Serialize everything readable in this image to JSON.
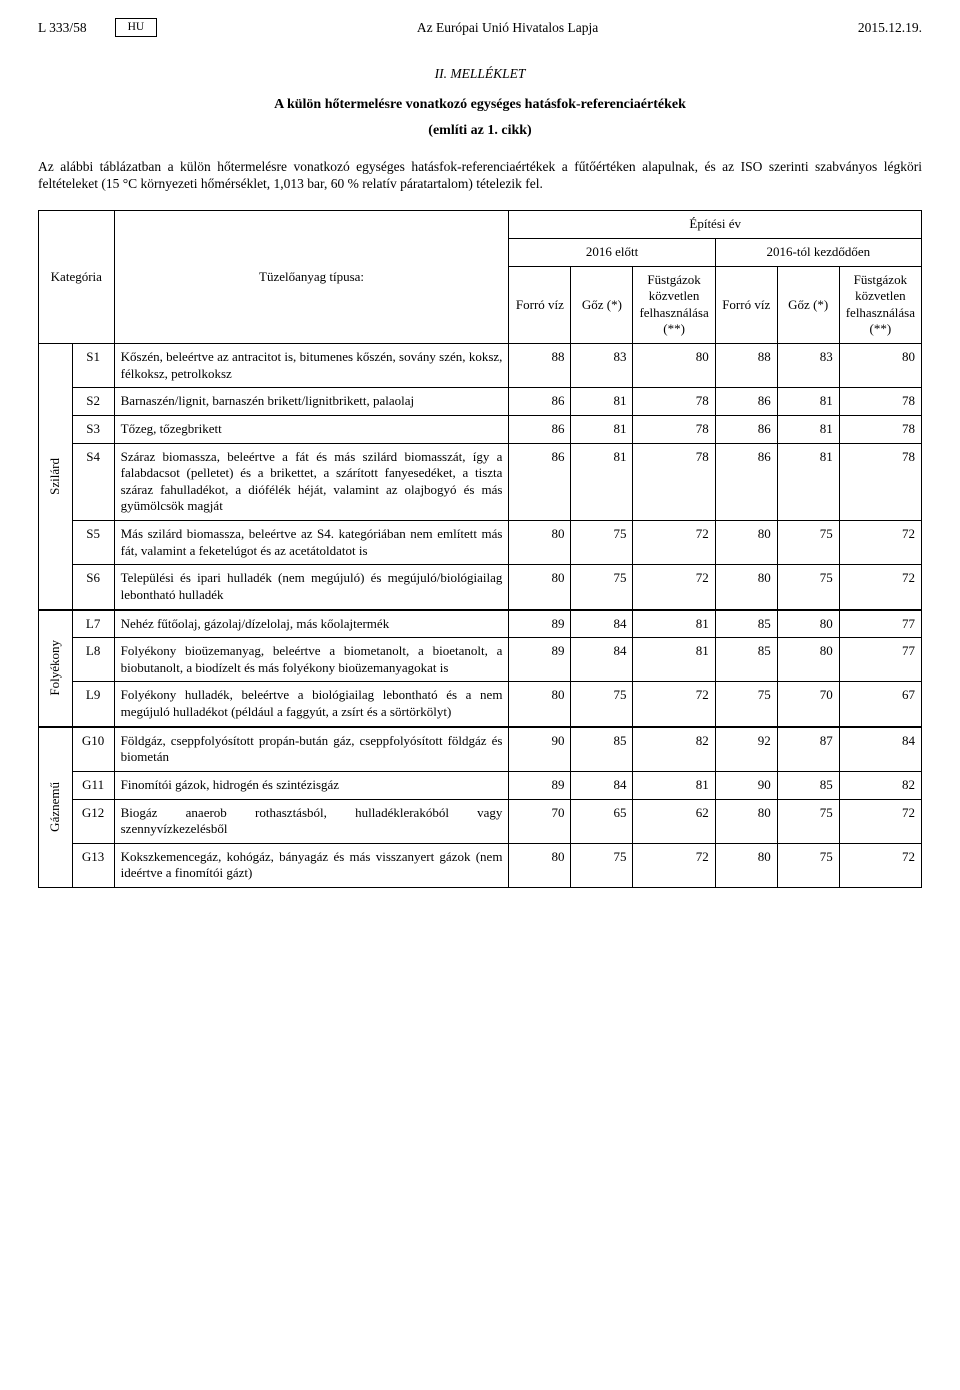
{
  "header": {
    "page_ref": "L 333/58",
    "lang": "HU",
    "center": "Az Európai Unió Hivatalos Lapja",
    "date": "2015.12.19."
  },
  "titles": {
    "annex": "II. MELLÉKLET",
    "line1": "A külön hőtermelésre vonatkozó egységes hatásfok-referenciaértékek",
    "line2": "(említi az 1. cikk)"
  },
  "intro": "Az alábbi táblázatban a külön hőtermelésre vonatkozó egységes hatásfok-referenciaértékek a fűtőértéken alapulnak, és az ISO szerinti szabványos légköri feltételeket (15 °C környezeti hőmérséklet, 1,013 bar, 60 % relatív páratartalom) tételezik fel.",
  "table": {
    "headers": {
      "category": "Kategória",
      "fuel": "Tüzelőanyag típusa:",
      "year": "Építési év",
      "before": "2016 előtt",
      "from": "2016-tól kezdődően",
      "hot_water": "Forró víz",
      "steam": "Gőz (*)",
      "flue": "Füstgázok közvetlen felhasználása (**)"
    },
    "cats": {
      "solid": "Szilárd",
      "liquid": "Folyékony",
      "gaseous": "Gáznemű"
    },
    "rows": [
      {
        "code": "S1",
        "desc": "Kőszén, beleértve az antracitot is, bitumenes kőszén, sovány szén, koksz, félkoksz, petrolkoksz",
        "v": [
          "88",
          "83",
          "80",
          "88",
          "83",
          "80"
        ]
      },
      {
        "code": "S2",
        "desc": "Barnaszén/lignit, barnaszén brikett/lignitbrikett, palaolaj",
        "v": [
          "86",
          "81",
          "78",
          "86",
          "81",
          "78"
        ]
      },
      {
        "code": "S3",
        "desc": "Tőzeg, tőzegbrikett",
        "v": [
          "86",
          "81",
          "78",
          "86",
          "81",
          "78"
        ]
      },
      {
        "code": "S4",
        "desc": "Száraz biomassza, beleértve a fát és más szilárd biomasszát, így a falabdacsot (pelletet) és a brikettet, a szárított fanyesedéket, a tiszta száraz fahulladékot, a diófélék héját, valamint az olajbogyó és más gyümölcsök magját",
        "v": [
          "86",
          "81",
          "78",
          "86",
          "81",
          "78"
        ]
      },
      {
        "code": "S5",
        "desc": "Más szilárd biomassza, beleértve az S4. kategóriában nem említett más fát, valamint a feketelúgot és az acetátoldatot is",
        "v": [
          "80",
          "75",
          "72",
          "80",
          "75",
          "72"
        ]
      },
      {
        "code": "S6",
        "desc": "Települési és ipari hulladék (nem megújuló) és megújuló/biológiailag lebontható hulladék",
        "v": [
          "80",
          "75",
          "72",
          "80",
          "75",
          "72"
        ]
      },
      {
        "code": "L7",
        "desc": "Nehéz fűtőolaj, gázolaj/dízelolaj, más kőolajtermék",
        "v": [
          "89",
          "84",
          "81",
          "85",
          "80",
          "77"
        ]
      },
      {
        "code": "L8",
        "desc": "Folyékony bioüzemanyag, beleértve a biometanolt, a bioetanolt, a biobutanolt, a biodízelt és más folyékony bioüzemanyagokat is",
        "v": [
          "89",
          "84",
          "81",
          "85",
          "80",
          "77"
        ]
      },
      {
        "code": "L9",
        "desc": "Folyékony hulladék, beleértve a biológiailag lebontható és a nem megújuló hulladékot (például a faggyút, a zsírt és a sörtörkölyt)",
        "v": [
          "80",
          "75",
          "72",
          "75",
          "70",
          "67"
        ]
      },
      {
        "code": "G10",
        "desc": "Földgáz, cseppfolyósított propán-bután gáz, cseppfolyósított földgáz és biometán",
        "v": [
          "90",
          "85",
          "82",
          "92",
          "87",
          "84"
        ]
      },
      {
        "code": "G11",
        "desc": "Finomítói gázok, hidrogén és szintézisgáz",
        "v": [
          "89",
          "84",
          "81",
          "90",
          "85",
          "82"
        ]
      },
      {
        "code": "G12",
        "desc": "Biogáz anaerob rothasztásból, hulladéklerakóból vagy szennyvízkezelésből",
        "v": [
          "70",
          "65",
          "62",
          "80",
          "75",
          "72"
        ]
      },
      {
        "code": "G13",
        "desc": "Kokszkemencegáz, kohógáz, bányagáz és más visszanyert gázok (nem ideértve a finomítói gázt)",
        "v": [
          "80",
          "75",
          "72",
          "80",
          "75",
          "72"
        ]
      }
    ]
  }
}
